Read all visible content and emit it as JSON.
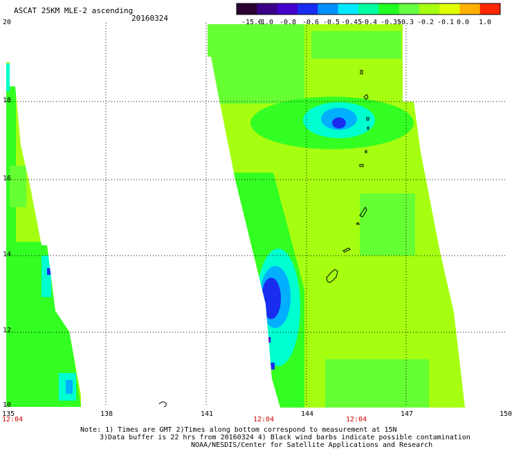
{
  "header": {
    "title": "ASCAT 25KM MLE-2 ascending",
    "date": "20160324"
  },
  "colorbar": {
    "labels": [
      "-15.0",
      "-1.0",
      "-0.8",
      "-0.6",
      "-0.5",
      "-0.45",
      "-0.4",
      "-0.35",
      "-0.3",
      "-0.2",
      "-0.1",
      "0.0",
      "1.0"
    ],
    "colors": [
      "#2a0033",
      "#3c0088",
      "#4400cc",
      "#1a2cf0",
      "#0090ff",
      "#00e8ff",
      "#00ffa0",
      "#22ff22",
      "#66ff44",
      "#a6ff10",
      "#e0ff00",
      "#ffb000",
      "#ff2800"
    ]
  },
  "map": {
    "lon_range": [
      135,
      150
    ],
    "lat_range": [
      10,
      20
    ],
    "lon_labels": [
      "135",
      "138",
      "141",
      "144",
      "147",
      "150"
    ],
    "lat_labels": [
      "20",
      "18",
      "16",
      "14",
      "12",
      "10"
    ],
    "times": [
      "12:04",
      "12:04",
      "12:04"
    ],
    "grid": true,
    "palette": {
      "background": "#a6ff10",
      "green": "#33ff22",
      "mid_green": "#66ff33",
      "cyan": "#00ffd0",
      "sky": "#00b0ff",
      "blue": "#1a2cf0",
      "violet": "#4400cc"
    }
  },
  "footer": {
    "line1": "Note: 1) Times are GMT 2)Times along bottom correspond to measurement at 15N",
    "line2": "3)Data buffer is 22 hrs from 20160324 4) Black wind barbs indicate possible contamination",
    "line3": "NOAA/NESDIS/Center for Satellite Applications and Research"
  }
}
